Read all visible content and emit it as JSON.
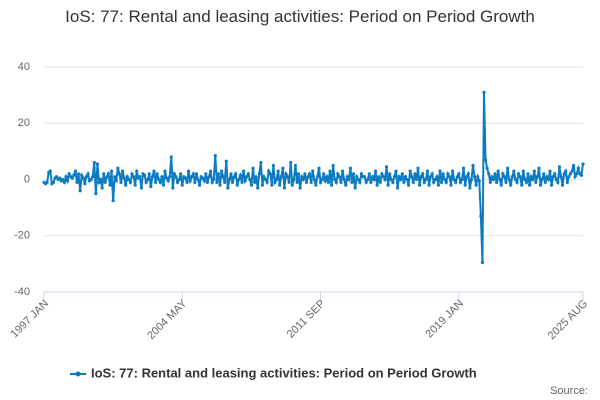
{
  "chart_data": {
    "type": "line",
    "title": "IoS: 77: Rental and leasing activities: Period on Period Growth",
    "source": "Source:",
    "categories": [
      "1997 JAN",
      null,
      null,
      null,
      null,
      null,
      null,
      null,
      null,
      null,
      null,
      null,
      null,
      null,
      null,
      null,
      null,
      null,
      null,
      null,
      null,
      null,
      null,
      null,
      null,
      null,
      null,
      null,
      null,
      null,
      null,
      null,
      null,
      null,
      null,
      null,
      null,
      null,
      null,
      null,
      null,
      null,
      null,
      null,
      null,
      null,
      null,
      null,
      null,
      null,
      null,
      null,
      null,
      null,
      null,
      null,
      null,
      null,
      null,
      null,
      null,
      null,
      null,
      null,
      null,
      null,
      null,
      null,
      null,
      null,
      null,
      null,
      null,
      null,
      null,
      null,
      null,
      null,
      null,
      null,
      null,
      null,
      null,
      null,
      null,
      null,
      null,
      null,
      "2004 MAY",
      null,
      null,
      null,
      null,
      null,
      null,
      null,
      null,
      null,
      null,
      null,
      null,
      null,
      null,
      null,
      null,
      null,
      null,
      null,
      null,
      null,
      null,
      null,
      null,
      null,
      null,
      null,
      null,
      null,
      null,
      null,
      null,
      null,
      null,
      null,
      null,
      null,
      null,
      null,
      null,
      null,
      null,
      null,
      null,
      null,
      null,
      null,
      null,
      null,
      null,
      null,
      null,
      null,
      null,
      null,
      null,
      null,
      null,
      null,
      null,
      null,
      null,
      null,
      null,
      null,
      null,
      null,
      null,
      null,
      null,
      null,
      null,
      null,
      null,
      null,
      null,
      null,
      null,
      null,
      null,
      null,
      null,
      null,
      null,
      null,
      null,
      null,
      "2011 SEP",
      null,
      null,
      null,
      null,
      null,
      null,
      null,
      null,
      null,
      null,
      null,
      null,
      null,
      null,
      null,
      null,
      null,
      null,
      null,
      null,
      null,
      null,
      null,
      null,
      null,
      null,
      null,
      null,
      null,
      null,
      null,
      null,
      null,
      null,
      null,
      null,
      null,
      null,
      null,
      null,
      null,
      null,
      null,
      null,
      null,
      null,
      null,
      null,
      null,
      null,
      null,
      null,
      null,
      null,
      null,
      null,
      null,
      null,
      null,
      null,
      null,
      null,
      null,
      null,
      null,
      null,
      null,
      null,
      null,
      null,
      null,
      null,
      null,
      null,
      null,
      null,
      null,
      null,
      null,
      null,
      null,
      null,
      null,
      null,
      null,
      null,
      null,
      "2019 JAN",
      null,
      null,
      null,
      null,
      null,
      null,
      null,
      null,
      null,
      null,
      null,
      null,
      null,
      null,
      null,
      null,
      null,
      null,
      null,
      null,
      null,
      null,
      null,
      null,
      null,
      null,
      null,
      null,
      null,
      null,
      null,
      null,
      null,
      null,
      null,
      null,
      null,
      null,
      null,
      null,
      null,
      null,
      null,
      null,
      null,
      null,
      null,
      null,
      null,
      null,
      null,
      null,
      null,
      null,
      null,
      null,
      null,
      null,
      null,
      null,
      null,
      null,
      null,
      null,
      null,
      null,
      null,
      null,
      null,
      null,
      null,
      null,
      null,
      null,
      null,
      null,
      null,
      null,
      "2025 AUG"
    ],
    "series": [
      {
        "name": "IoS: 77: Rental and leasing activities: Period on Period Growth",
        "color": "#0d7bbf",
        "values": [
          -1,
          -1.5,
          -1,
          2.5,
          3,
          -1.5,
          -1,
          0.5,
          1,
          0,
          0.5,
          -0.5,
          0,
          -1,
          1,
          -0.5,
          2,
          1,
          0.5,
          1.5,
          3,
          -1,
          2,
          -4,
          1.5,
          0.5,
          -1.5,
          1,
          2,
          -0.5,
          0,
          1,
          6,
          -5,
          5.5,
          -1,
          0,
          -3,
          2,
          -1,
          1,
          2,
          -2,
          3,
          -7.5,
          1,
          -0.5,
          4,
          2,
          -1,
          3,
          0.5,
          -2,
          1,
          0,
          -1,
          2,
          1,
          -2,
          3,
          0.5,
          1,
          -3,
          2,
          1.5,
          -1,
          0,
          2,
          -2.5,
          1,
          3,
          -1,
          2,
          0,
          -1,
          1,
          -2,
          3,
          0.5,
          -0.5,
          1,
          8,
          -3,
          2,
          1,
          -1,
          0,
          2,
          -2,
          1,
          0.5,
          -1,
          3,
          -0.5,
          1,
          2,
          -1,
          2,
          0,
          -2,
          1,
          0.5,
          -0.5,
          2,
          -1,
          1,
          3,
          -1,
          0,
          8.5,
          -1,
          2,
          -2,
          3,
          1,
          -1,
          6.5,
          -3,
          0,
          2,
          -1,
          1,
          2,
          -2,
          0,
          1.5,
          -1,
          3,
          -0.5,
          1,
          2,
          0,
          -2,
          4,
          -1,
          1,
          -3,
          2,
          6,
          -2,
          1,
          0,
          -1,
          3,
          2,
          -2,
          5,
          -1,
          0,
          3,
          -2,
          1,
          4,
          -3,
          2,
          1,
          -1,
          6,
          -2,
          0,
          5,
          -1,
          2,
          -3,
          1,
          0,
          2,
          -1,
          1,
          2,
          -1,
          3,
          0,
          -2,
          1,
          4,
          -1,
          0,
          2,
          -0.5,
          1,
          -1,
          3,
          -2,
          5,
          0,
          -1,
          2,
          1,
          -1,
          3,
          0,
          -2,
          1,
          0,
          4,
          -1,
          2,
          -3,
          1,
          0,
          -1,
          2,
          1,
          1,
          -1,
          0,
          2,
          -1,
          1,
          0,
          3,
          -2,
          1,
          -1,
          2,
          1,
          0,
          4.5,
          -2,
          2,
          0,
          -1,
          1,
          3,
          -3,
          1,
          0,
          2,
          -1,
          1,
          0,
          -2,
          3,
          1,
          -1,
          2,
          0,
          4,
          -2,
          1,
          2,
          -1,
          0,
          3,
          -2,
          1,
          2,
          -1,
          0,
          1,
          -2,
          3,
          -1,
          2,
          0,
          -1,
          2,
          1,
          -2,
          3,
          0,
          -1,
          1,
          2,
          -1,
          0,
          4,
          -2,
          1,
          2,
          -3,
          0,
          5,
          1,
          -2,
          1,
          -0.5,
          -13,
          -29.5,
          31,
          7,
          4,
          2,
          -1,
          1,
          0,
          2,
          -1,
          3,
          0,
          -2,
          2,
          1,
          -1,
          4,
          0,
          -2,
          1,
          3,
          0,
          -1,
          2,
          1,
          -2,
          3,
          0,
          -1,
          2,
          -2,
          1,
          0,
          3,
          -1,
          1,
          4,
          -2,
          0,
          2,
          -1,
          1,
          0,
          3,
          -2,
          1,
          2,
          0,
          -1,
          4.5,
          1,
          -2,
          2,
          3,
          -1,
          1,
          2,
          3,
          5,
          1,
          2,
          4,
          2,
          1.5,
          5.5
        ]
      }
    ],
    "ylim": [
      -40,
      40
    ],
    "yticks": [
      -40,
      -20,
      0,
      20,
      40
    ],
    "grid": true
  }
}
